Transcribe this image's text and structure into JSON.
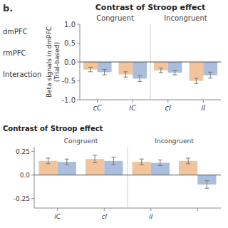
{
  "annotations": [
    "b.",
    "dmPFC",
    "rmPFC",
    "Interaction"
  ],
  "chart_data": [
    {
      "type": "bar",
      "title": "Contrast of Stroop effect",
      "ylabel": "Beta signals in dmPFC\n(Trial-based)",
      "categories": [
        "cC",
        "iC",
        "cI",
        "iI"
      ],
      "series": [
        {
          "color": "#F2C49B",
          "values": [
            -0.2,
            -0.33,
            -0.22,
            -0.5
          ],
          "errors": [
            0.06,
            0.07,
            0.06,
            0.07
          ]
        },
        {
          "color": "#A9BEDD",
          "values": [
            -0.27,
            -0.44,
            -0.28,
            -0.35
          ],
          "errors": [
            0.07,
            0.08,
            0.06,
            0.08
          ]
        }
      ],
      "ylim": [
        -1.0,
        1.0
      ],
      "yticks": [
        {
          "value": -1.0,
          "label": "-1.0"
        },
        -0.5,
        {
          "value": 0.0,
          "label": "0.0"
        },
        0.5,
        {
          "value": 1.0,
          "label": "1.0"
        }
      ],
      "annotations": [
        "Congruent",
        "Incongruent"
      ],
      "grid": false
    },
    {
      "type": "bar",
      "title": "Contrast of Stroop effect",
      "categories": [
        "iC",
        "cI",
        "iI",
        null
      ],
      "series": [
        {
          "color": "#F2C49B",
          "values": [
            0.15,
            0.17,
            0.14,
            0.15
          ],
          "errors": [
            0.03,
            0.04,
            0.03,
            0.03
          ]
        },
        {
          "color": "#A9BEDD",
          "values": [
            0.14,
            0.15,
            0.13,
            -0.1
          ],
          "errors": [
            0.03,
            0.04,
            0.03,
            0.04
          ]
        }
      ],
      "ylim": [
        -0.35,
        0.3
      ],
      "yticks": [
        -0.25,
        {
          "value": 0.0,
          "label": "0.0"
        },
        0.25
      ],
      "annotations": [
        "Congruent",
        "Incongruent"
      ],
      "grid": false
    }
  ]
}
